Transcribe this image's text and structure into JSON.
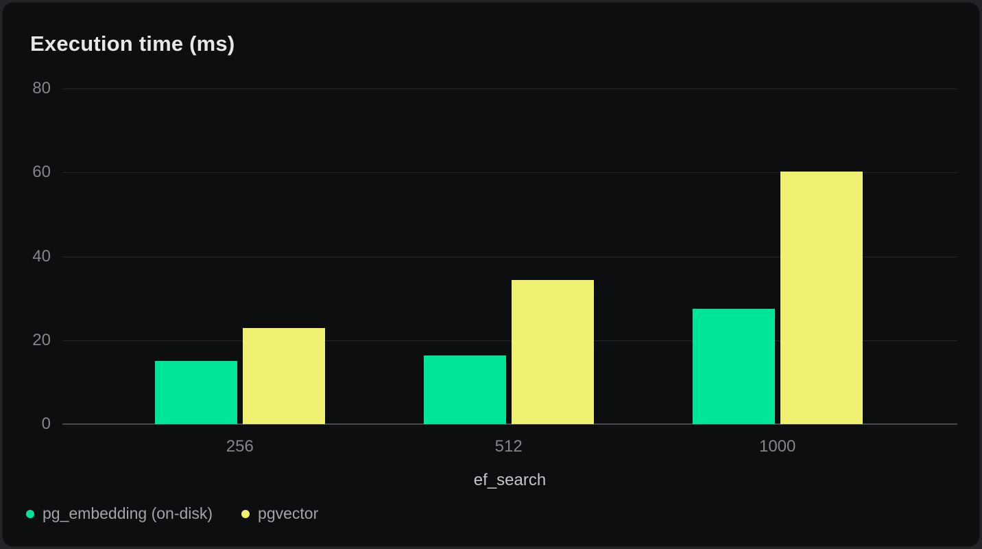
{
  "panel": {
    "background": "#0d0e10",
    "page_background": "#222428"
  },
  "chart_data": {
    "type": "bar",
    "title": "Execution time (ms)",
    "xlabel": "ef_search",
    "ylabel": "",
    "categories": [
      "256",
      "512",
      "1000"
    ],
    "series": [
      {
        "name": "pg_embedding (on-disk)",
        "color": "#00e599",
        "values": [
          15.0,
          16.4,
          27.5
        ]
      },
      {
        "name": "pgvector",
        "color": "#eff171",
        "values": [
          22.9,
          34.4,
          60.3
        ]
      }
    ],
    "ylim": [
      0,
      80
    ],
    "yticks": [
      0,
      20,
      40,
      60,
      80
    ],
    "grid": true,
    "legend_position": "bottom-left",
    "colors": {
      "grid_line": "#25272b",
      "zero_axis_line": "#47494e",
      "tick_text": "#83858a",
      "axis_label_text": "#c3c5ca",
      "legend_text": "#a2a4a9",
      "title_text": "#e6e7e9"
    }
  }
}
